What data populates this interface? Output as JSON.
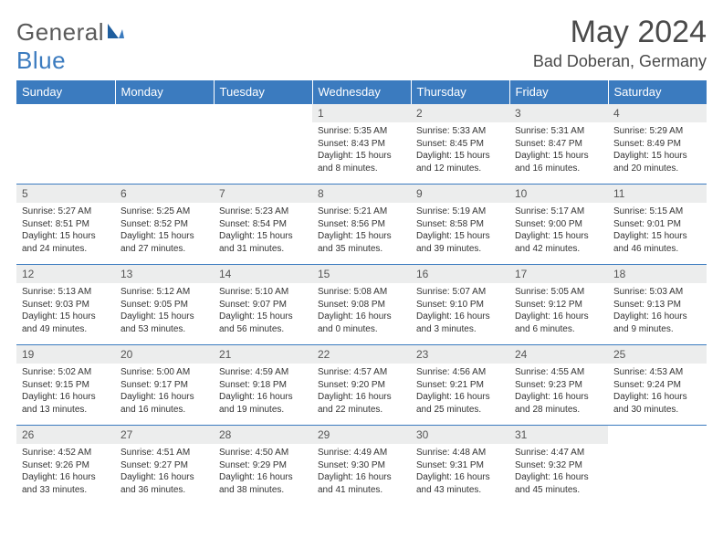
{
  "brand": {
    "word1": "General",
    "word2": "Blue"
  },
  "title": "May 2024",
  "location": "Bad Doberan, Germany",
  "colors": {
    "header_bg": "#3b7bbf",
    "header_text": "#ffffff",
    "row_border": "#3b7bbf",
    "daynum_bg": "#eceded",
    "body_text": "#333333",
    "page_bg": "#ffffff"
  },
  "day_headers": [
    "Sunday",
    "Monday",
    "Tuesday",
    "Wednesday",
    "Thursday",
    "Friday",
    "Saturday"
  ],
  "weeks": [
    [
      {
        "n": "",
        "sr": "",
        "ss": "",
        "dl": ""
      },
      {
        "n": "",
        "sr": "",
        "ss": "",
        "dl": ""
      },
      {
        "n": "",
        "sr": "",
        "ss": "",
        "dl": ""
      },
      {
        "n": "1",
        "sr": "Sunrise: 5:35 AM",
        "ss": "Sunset: 8:43 PM",
        "dl": "Daylight: 15 hours and 8 minutes."
      },
      {
        "n": "2",
        "sr": "Sunrise: 5:33 AM",
        "ss": "Sunset: 8:45 PM",
        "dl": "Daylight: 15 hours and 12 minutes."
      },
      {
        "n": "3",
        "sr": "Sunrise: 5:31 AM",
        "ss": "Sunset: 8:47 PM",
        "dl": "Daylight: 15 hours and 16 minutes."
      },
      {
        "n": "4",
        "sr": "Sunrise: 5:29 AM",
        "ss": "Sunset: 8:49 PM",
        "dl": "Daylight: 15 hours and 20 minutes."
      }
    ],
    [
      {
        "n": "5",
        "sr": "Sunrise: 5:27 AM",
        "ss": "Sunset: 8:51 PM",
        "dl": "Daylight: 15 hours and 24 minutes."
      },
      {
        "n": "6",
        "sr": "Sunrise: 5:25 AM",
        "ss": "Sunset: 8:52 PM",
        "dl": "Daylight: 15 hours and 27 minutes."
      },
      {
        "n": "7",
        "sr": "Sunrise: 5:23 AM",
        "ss": "Sunset: 8:54 PM",
        "dl": "Daylight: 15 hours and 31 minutes."
      },
      {
        "n": "8",
        "sr": "Sunrise: 5:21 AM",
        "ss": "Sunset: 8:56 PM",
        "dl": "Daylight: 15 hours and 35 minutes."
      },
      {
        "n": "9",
        "sr": "Sunrise: 5:19 AM",
        "ss": "Sunset: 8:58 PM",
        "dl": "Daylight: 15 hours and 39 minutes."
      },
      {
        "n": "10",
        "sr": "Sunrise: 5:17 AM",
        "ss": "Sunset: 9:00 PM",
        "dl": "Daylight: 15 hours and 42 minutes."
      },
      {
        "n": "11",
        "sr": "Sunrise: 5:15 AM",
        "ss": "Sunset: 9:01 PM",
        "dl": "Daylight: 15 hours and 46 minutes."
      }
    ],
    [
      {
        "n": "12",
        "sr": "Sunrise: 5:13 AM",
        "ss": "Sunset: 9:03 PM",
        "dl": "Daylight: 15 hours and 49 minutes."
      },
      {
        "n": "13",
        "sr": "Sunrise: 5:12 AM",
        "ss": "Sunset: 9:05 PM",
        "dl": "Daylight: 15 hours and 53 minutes."
      },
      {
        "n": "14",
        "sr": "Sunrise: 5:10 AM",
        "ss": "Sunset: 9:07 PM",
        "dl": "Daylight: 15 hours and 56 minutes."
      },
      {
        "n": "15",
        "sr": "Sunrise: 5:08 AM",
        "ss": "Sunset: 9:08 PM",
        "dl": "Daylight: 16 hours and 0 minutes."
      },
      {
        "n": "16",
        "sr": "Sunrise: 5:07 AM",
        "ss": "Sunset: 9:10 PM",
        "dl": "Daylight: 16 hours and 3 minutes."
      },
      {
        "n": "17",
        "sr": "Sunrise: 5:05 AM",
        "ss": "Sunset: 9:12 PM",
        "dl": "Daylight: 16 hours and 6 minutes."
      },
      {
        "n": "18",
        "sr": "Sunrise: 5:03 AM",
        "ss": "Sunset: 9:13 PM",
        "dl": "Daylight: 16 hours and 9 minutes."
      }
    ],
    [
      {
        "n": "19",
        "sr": "Sunrise: 5:02 AM",
        "ss": "Sunset: 9:15 PM",
        "dl": "Daylight: 16 hours and 13 minutes."
      },
      {
        "n": "20",
        "sr": "Sunrise: 5:00 AM",
        "ss": "Sunset: 9:17 PM",
        "dl": "Daylight: 16 hours and 16 minutes."
      },
      {
        "n": "21",
        "sr": "Sunrise: 4:59 AM",
        "ss": "Sunset: 9:18 PM",
        "dl": "Daylight: 16 hours and 19 minutes."
      },
      {
        "n": "22",
        "sr": "Sunrise: 4:57 AM",
        "ss": "Sunset: 9:20 PM",
        "dl": "Daylight: 16 hours and 22 minutes."
      },
      {
        "n": "23",
        "sr": "Sunrise: 4:56 AM",
        "ss": "Sunset: 9:21 PM",
        "dl": "Daylight: 16 hours and 25 minutes."
      },
      {
        "n": "24",
        "sr": "Sunrise: 4:55 AM",
        "ss": "Sunset: 9:23 PM",
        "dl": "Daylight: 16 hours and 28 minutes."
      },
      {
        "n": "25",
        "sr": "Sunrise: 4:53 AM",
        "ss": "Sunset: 9:24 PM",
        "dl": "Daylight: 16 hours and 30 minutes."
      }
    ],
    [
      {
        "n": "26",
        "sr": "Sunrise: 4:52 AM",
        "ss": "Sunset: 9:26 PM",
        "dl": "Daylight: 16 hours and 33 minutes."
      },
      {
        "n": "27",
        "sr": "Sunrise: 4:51 AM",
        "ss": "Sunset: 9:27 PM",
        "dl": "Daylight: 16 hours and 36 minutes."
      },
      {
        "n": "28",
        "sr": "Sunrise: 4:50 AM",
        "ss": "Sunset: 9:29 PM",
        "dl": "Daylight: 16 hours and 38 minutes."
      },
      {
        "n": "29",
        "sr": "Sunrise: 4:49 AM",
        "ss": "Sunset: 9:30 PM",
        "dl": "Daylight: 16 hours and 41 minutes."
      },
      {
        "n": "30",
        "sr": "Sunrise: 4:48 AM",
        "ss": "Sunset: 9:31 PM",
        "dl": "Daylight: 16 hours and 43 minutes."
      },
      {
        "n": "31",
        "sr": "Sunrise: 4:47 AM",
        "ss": "Sunset: 9:32 PM",
        "dl": "Daylight: 16 hours and 45 minutes."
      },
      {
        "n": "",
        "sr": "",
        "ss": "",
        "dl": ""
      }
    ]
  ]
}
